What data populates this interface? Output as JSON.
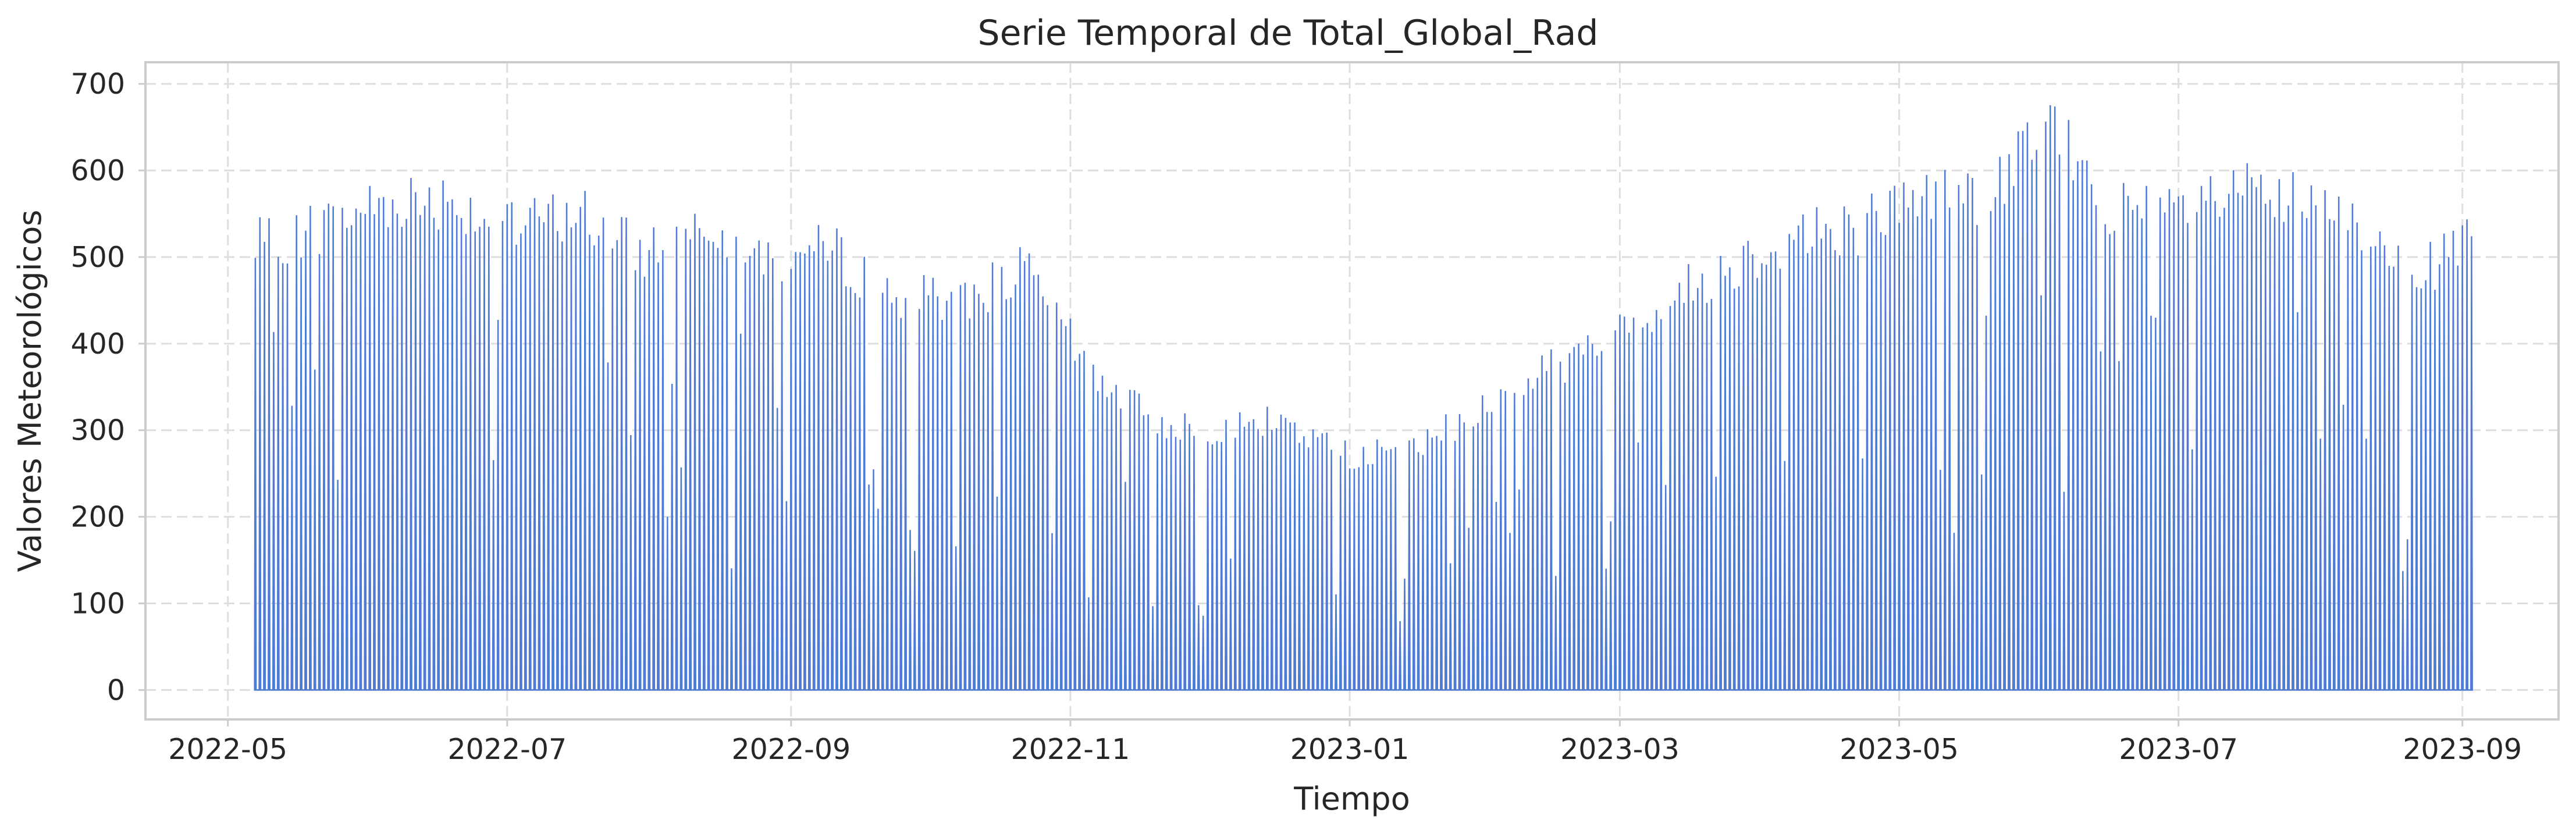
{
  "chart_data": {
    "type": "area",
    "title": "Serie Temporal de Total_Global_Rad",
    "xlabel": "Tiempo",
    "ylabel": "Valores Meteorológicos",
    "x_type": "date",
    "xlim": [
      "2022-04-13",
      "2023-09-22"
    ],
    "ylim": [
      -34,
      725
    ],
    "x_ticks": [
      "2022-05",
      "2022-07",
      "2022-09",
      "2022-11",
      "2023-01",
      "2023-03",
      "2023-05",
      "2023-07",
      "2023-09"
    ],
    "x_tick_dates": [
      "2022-05-01",
      "2022-07-01",
      "2022-09-01",
      "2022-11-01",
      "2023-01-01",
      "2023-03-01",
      "2023-05-01",
      "2023-07-01",
      "2023-09-01"
    ],
    "y_ticks": [
      0,
      100,
      200,
      300,
      400,
      500,
      600,
      700
    ],
    "grid": true,
    "legend": "none",
    "color": "#4f7bd4",
    "series": [
      {
        "x": [
          "2022-05-07",
          "2022-05-21",
          "2022-06-04",
          "2022-06-18",
          "2022-07-02",
          "2022-07-16",
          "2022-07-30",
          "2022-08-13",
          "2022-08-27",
          "2022-09-10",
          "2022-09-24",
          "2022-10-08",
          "2022-10-22",
          "2022-11-05",
          "2022-11-19",
          "2022-12-03",
          "2022-12-17",
          "2022-12-31",
          "2023-01-14",
          "2023-01-28",
          "2023-02-11",
          "2023-02-25",
          "2023-03-11",
          "2023-03-25",
          "2023-04-08",
          "2023-04-22",
          "2023-05-06",
          "2023-05-20",
          "2023-06-03",
          "2023-06-17",
          "2023-07-01",
          "2023-07-15",
          "2023-07-29",
          "2023-08-12",
          "2023-08-26",
          "2023-09-03"
        ],
        "values": [
          545,
          570,
          600,
          605,
          565,
          590,
          535,
          585,
          530,
          540,
          480,
          480,
          515,
          395,
          330,
          320,
          330,
          290,
          290,
          340,
          390,
          420,
          480,
          520,
          560,
          570,
          610,
          605,
          695,
          590,
          590,
          610,
          595,
          560,
          515,
          565
        ]
      }
    ]
  }
}
